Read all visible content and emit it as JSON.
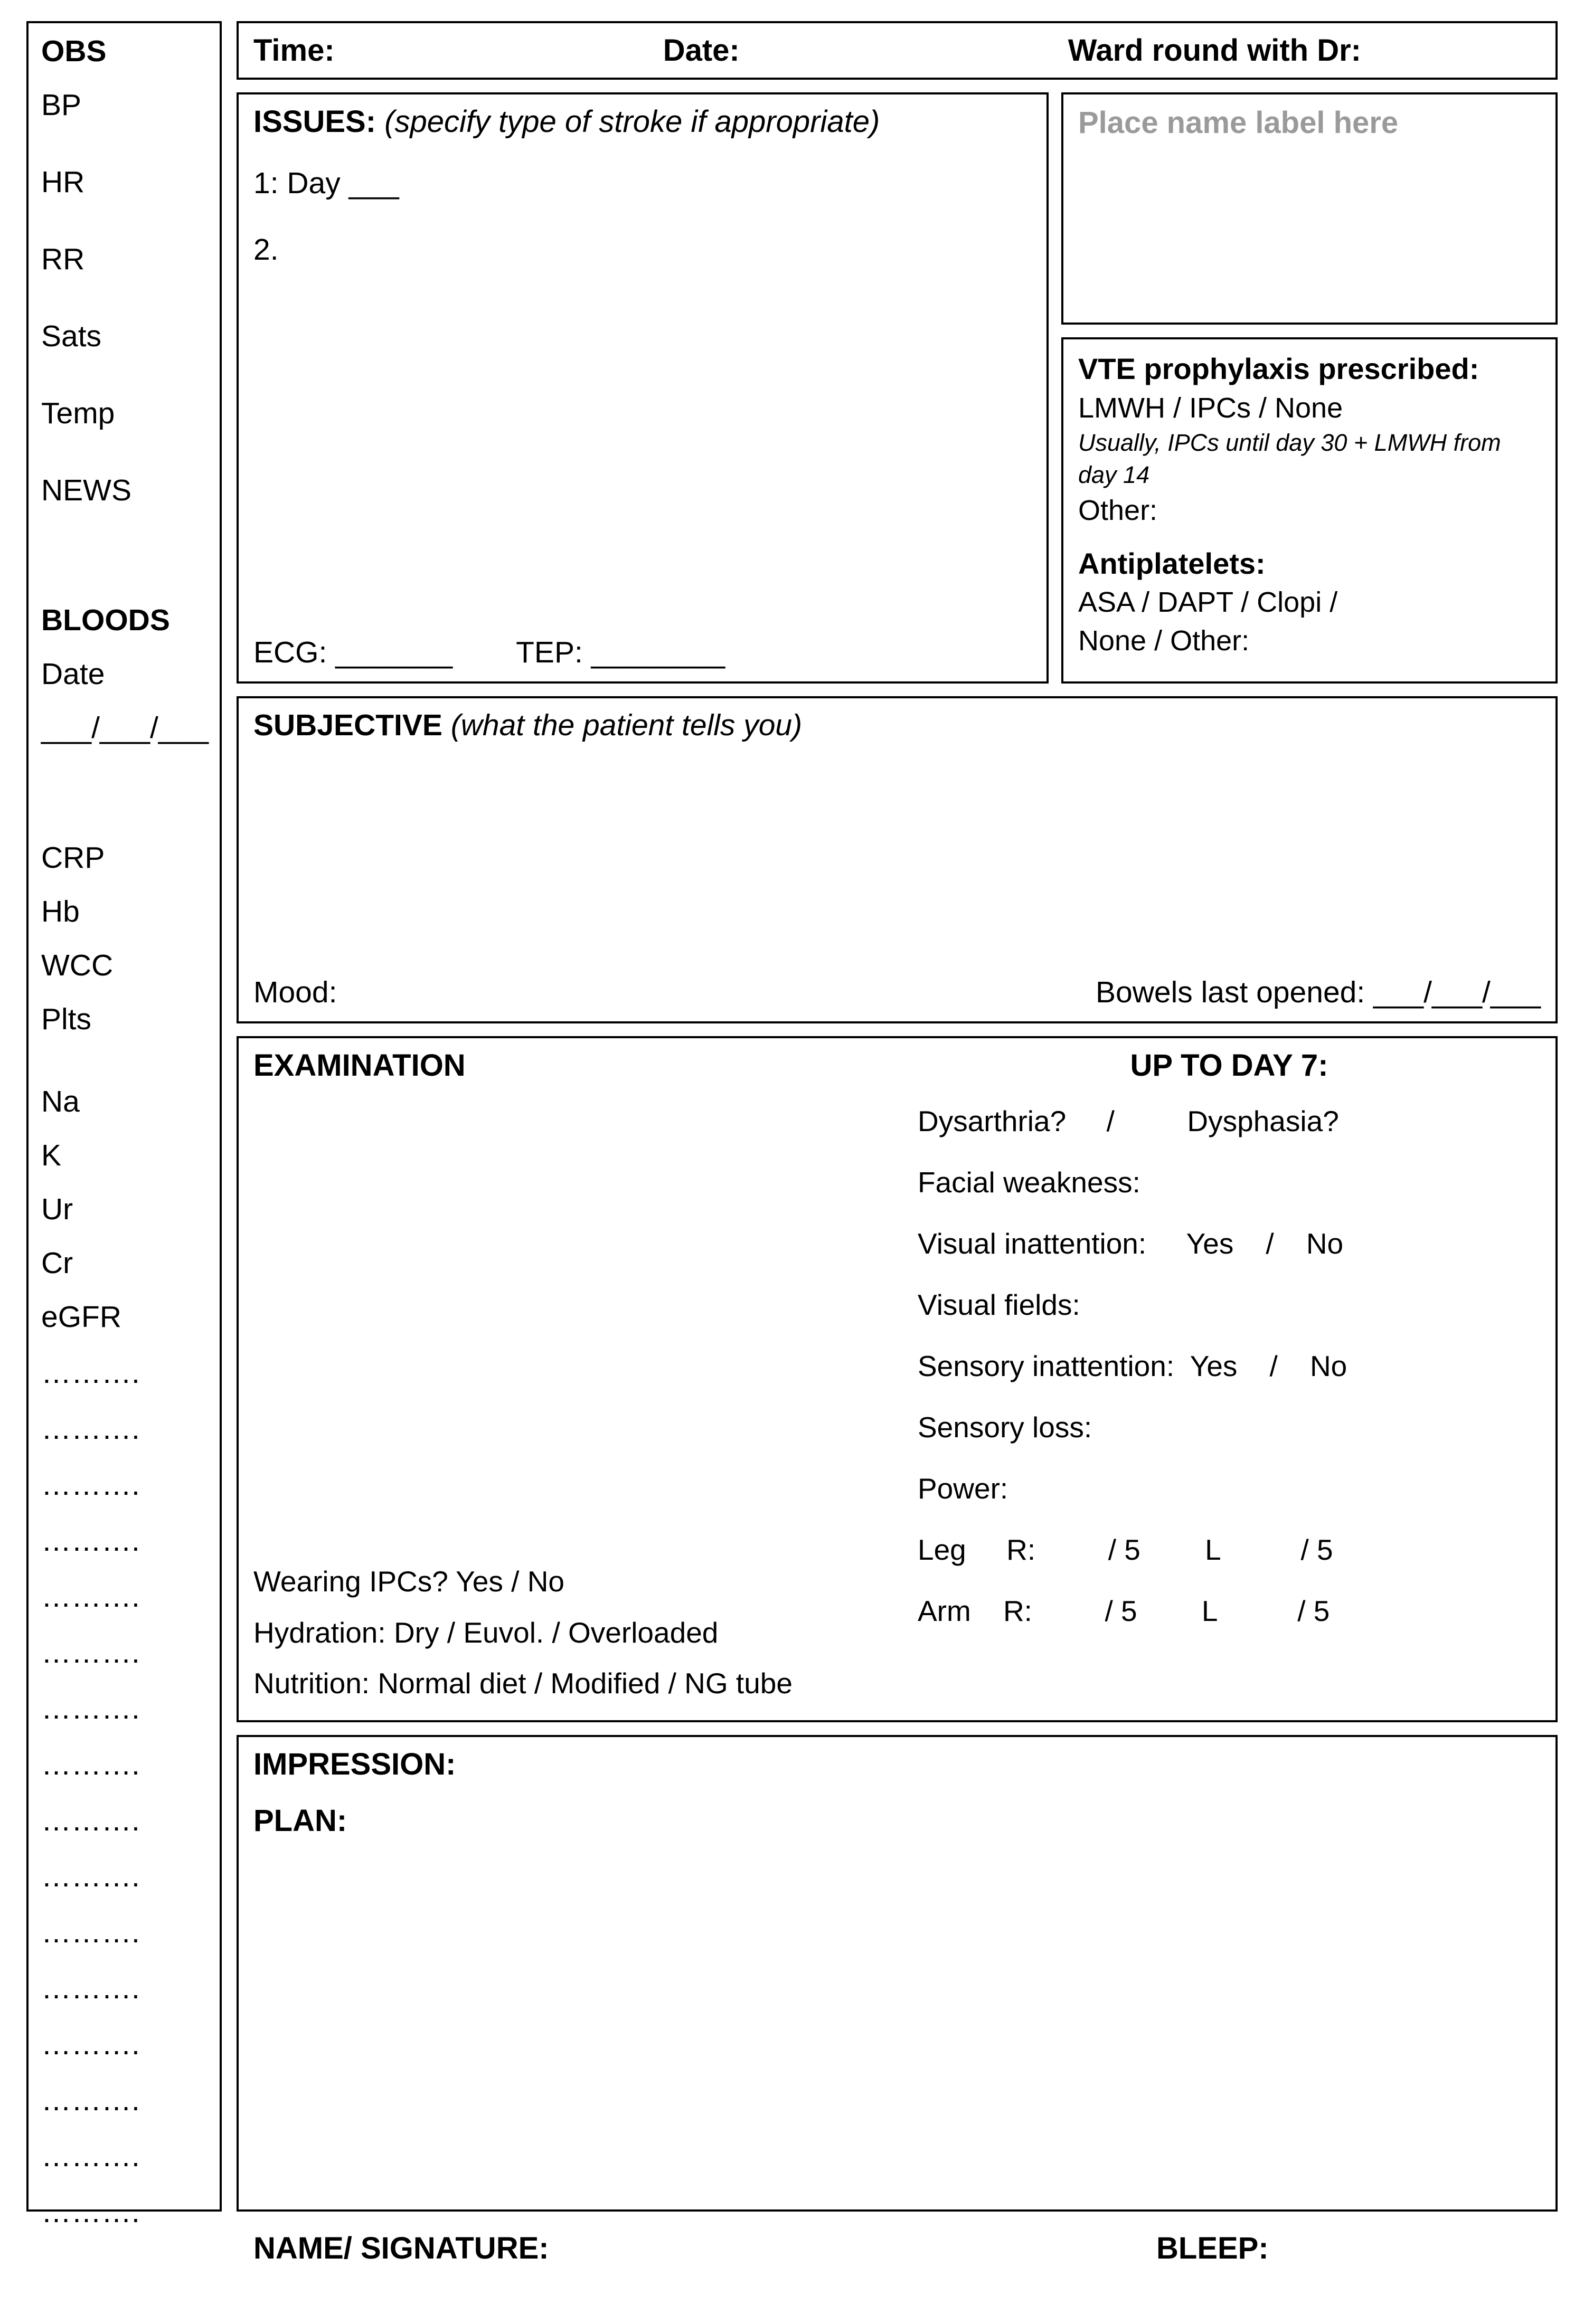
{
  "colors": {
    "border": "#000000",
    "text": "#000000",
    "placeholder": "#9a9a9a",
    "background": "#ffffff"
  },
  "typography": {
    "font_family": "Arial",
    "base_size_pt": 18,
    "heading_weight": "bold"
  },
  "sidebar": {
    "obs_heading": "OBS",
    "obs_items": [
      "BP",
      "HR",
      "RR",
      "Sats",
      "Temp",
      "NEWS"
    ],
    "bloods_heading": "BLOODS",
    "bloods_date_label": "Date",
    "bloods_date_blank": "___/___/___",
    "bloods_items": [
      "CRP",
      "Hb",
      "WCC",
      "Plts"
    ],
    "bloods_items2": [
      "Na",
      "K",
      "Ur",
      "Cr",
      "eGFR"
    ],
    "dots_line": "……….",
    "dots_count": 16
  },
  "header": {
    "time_label": "Time:",
    "date_label": "Date:",
    "ward_label": "Ward round with Dr:"
  },
  "issues": {
    "title_bold": "ISSUES:",
    "title_italic": " (specify type of stroke if appropriate)",
    "line1": "1: Day ___",
    "line2": "2.",
    "ecg_label": "ECG: _______",
    "tep_label": "TEP: ________"
  },
  "name_label": {
    "text": "Place name label here"
  },
  "vte": {
    "title": "VTE prophylaxis prescribed:",
    "options": "LMWH    /    IPCs    /    None",
    "note": "Usually, IPCs until day 30 + LMWH from day 14",
    "other": "Other:",
    "antiplatelets_title": "Antiplatelets:",
    "antiplatelets_line1": "ASA    /    DAPT    /    Clopi    /",
    "antiplatelets_line2": "None   /    Other:"
  },
  "subjective": {
    "title_bold": "SUBJECTIVE",
    "title_italic": " (what the patient tells you)",
    "mood_label": "Mood:",
    "bowels_label": "Bowels last opened: ___/___/___"
  },
  "exam": {
    "title": "EXAMINATION",
    "wearing_line": "Wearing IPCs?    Yes    /    No",
    "hydration_line": "Hydration:   Dry   /   Euvol.   /   Overloaded",
    "nutrition_line": "Nutrition:   Normal diet   /   Modified   /   NG tube",
    "right_title": "UP TO DAY 7:",
    "r_dysarthria": "Dysarthria?     /         Dysphasia?",
    "r_facial": "Facial weakness:",
    "r_visual_inatt": "Visual inattention:     Yes    /    No",
    "r_visual_fields": "Visual fields:",
    "r_sensory_inatt": "Sensory inattention:  Yes    /    No",
    "r_sensory_loss": "Sensory loss:",
    "r_power": "Power:",
    "r_leg": "Leg     R:         / 5        L          / 5",
    "r_arm": "Arm    R:         / 5        L          / 5"
  },
  "impression": {
    "impression_label": "IMPRESSION:",
    "plan_label": "PLAN:"
  },
  "footer": {
    "signature_label": "NAME/ SIGNATURE:",
    "bleep_label": "BLEEP:"
  }
}
